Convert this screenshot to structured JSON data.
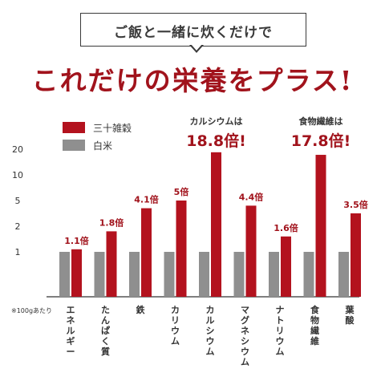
{
  "header": {
    "boxed_text": "ご飯と一緒に炊くだけで",
    "title": "これだけの栄養をプラス!"
  },
  "colors": {
    "zakkoku": "#b3121e",
    "hakumai": "#8f8f8f",
    "title": "#a1131c",
    "axis": "#333333"
  },
  "legend": [
    {
      "label": "三十雑穀",
      "color": "#b3121e"
    },
    {
      "label": "白米",
      "color": "#8f8f8f"
    }
  ],
  "footnote": "※100gあたり",
  "chart_data": {
    "type": "bar",
    "title": "",
    "xlabel": "",
    "ylabel": "",
    "y_ticks": [
      "20",
      "10",
      "5",
      "2",
      "1"
    ],
    "y_tick_values": [
      20,
      10,
      5,
      2,
      1
    ],
    "categories": [
      "エネルギー",
      "たんぱく質",
      "鉄",
      "カリウム",
      "カルシウム",
      "マグネシウム",
      "ナトリウム",
      "食物繊維",
      "葉酸"
    ],
    "series": [
      {
        "name": "白米",
        "values": [
          1,
          1,
          1,
          1,
          1,
          1,
          1,
          1,
          1
        ]
      },
      {
        "name": "三十雑穀",
        "values": [
          1.1,
          1.8,
          4.1,
          5,
          18.8,
          4.4,
          1.6,
          17.8,
          3.5
        ]
      }
    ],
    "data_labels": [
      "1.1倍",
      "1.8倍",
      "4.1倍",
      "5倍",
      "18.8倍!",
      "4.4倍",
      "1.6倍",
      "17.8倍!",
      "3.5倍"
    ],
    "highlight_prefixes": {
      "4": "カルシウムは",
      "7": "食物繊維は"
    },
    "grid": false,
    "legend_position": "top-left"
  }
}
